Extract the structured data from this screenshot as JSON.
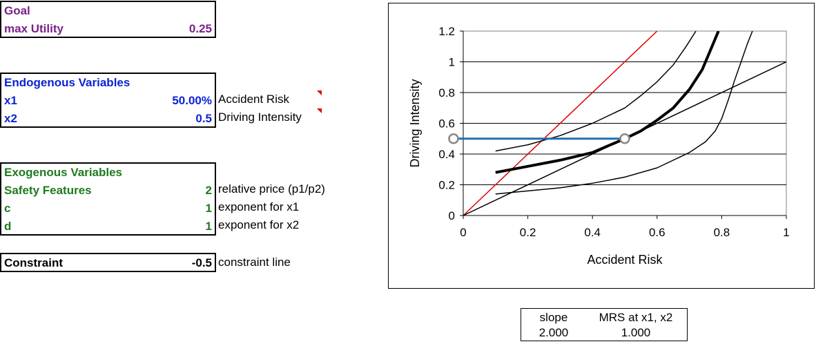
{
  "goal": {
    "header": "Goal",
    "label": "max Utility",
    "value": "0.25"
  },
  "endogenous": {
    "header": "Endogenous Variables",
    "rows": [
      {
        "label": "x1",
        "value": "50.00%",
        "note": "Accident Risk"
      },
      {
        "label": "x2",
        "value": "0.5",
        "note": "Driving Intensity"
      }
    ]
  },
  "exogenous": {
    "header": "Exogenous Variables",
    "rows": [
      {
        "label": "Safety Features",
        "value": "2",
        "note": "relative price (p1/p2)"
      },
      {
        "label": "c",
        "value": "1",
        "note": "exponent for x1"
      },
      {
        "label": "d",
        "value": "1",
        "note": "exponent for x2"
      }
    ]
  },
  "constraint": {
    "label": "Constraint",
    "value": "-0.5",
    "note": "constraint line"
  },
  "mrs_table": {
    "h1": "slope",
    "h2": "MRS at x1, x2",
    "v1": "2.000",
    "v2": "1.000"
  },
  "colors": {
    "goal": "#7a1f8a",
    "endogenous": "#0d22d6",
    "exogenous": "#1f7a1f",
    "constraint_line": "#e00000",
    "highlight": "#1f6fb0"
  },
  "chart_data": {
    "type": "line",
    "xlabel": "Accident Risk",
    "ylabel": "Driving Intensity",
    "xlim": [
      0,
      1
    ],
    "ylim": [
      0,
      1.2
    ],
    "xticks": [
      "0",
      "0.2",
      "0.4",
      "0.6",
      "0.8",
      "1"
    ],
    "yticks": [
      "0",
      "0.2",
      "0.4",
      "0.6",
      "0.8",
      "1",
      "1.2"
    ],
    "grid": "horizontal",
    "series": [
      {
        "color": "#e00000",
        "width": 1.5,
        "points": [
          [
            0,
            0
          ],
          [
            0.6,
            1.2
          ]
        ]
      },
      {
        "color": "#000000",
        "width": 1.5,
        "points": [
          [
            0,
            0
          ],
          [
            1,
            1
          ]
        ]
      },
      {
        "color": "#000000",
        "width": 1.5,
        "points": [
          [
            0.1,
            0.14
          ],
          [
            0.2,
            0.16
          ],
          [
            0.3,
            0.18
          ],
          [
            0.4,
            0.21
          ],
          [
            0.5,
            0.25
          ],
          [
            0.6,
            0.31
          ],
          [
            0.7,
            0.41
          ],
          [
            0.75,
            0.48
          ],
          [
            0.78,
            0.55
          ],
          [
            0.8,
            0.63
          ],
          [
            0.82,
            0.75
          ],
          [
            0.84,
            0.88
          ],
          [
            0.86,
            1.0
          ],
          [
            0.88,
            1.12
          ],
          [
            0.895,
            1.2
          ]
        ]
      },
      {
        "color": "#000000",
        "width": 4,
        "points": [
          [
            0.1,
            0.28
          ],
          [
            0.2,
            0.32
          ],
          [
            0.3,
            0.36
          ],
          [
            0.4,
            0.41
          ],
          [
            0.5,
            0.5
          ],
          [
            0.55,
            0.55
          ],
          [
            0.6,
            0.62
          ],
          [
            0.65,
            0.7
          ],
          [
            0.7,
            0.82
          ],
          [
            0.74,
            0.95
          ],
          [
            0.77,
            1.1
          ],
          [
            0.79,
            1.2
          ]
        ]
      },
      {
        "color": "#000000",
        "width": 1.5,
        "points": [
          [
            0.1,
            0.42
          ],
          [
            0.2,
            0.46
          ],
          [
            0.3,
            0.52
          ],
          [
            0.4,
            0.6
          ],
          [
            0.5,
            0.7
          ],
          [
            0.55,
            0.78
          ],
          [
            0.6,
            0.87
          ],
          [
            0.65,
            0.98
          ],
          [
            0.69,
            1.1
          ],
          [
            0.72,
            1.2
          ]
        ]
      },
      {
        "color": "#1f6fb0",
        "width": 3,
        "points": [
          [
            -0.03,
            0.5
          ],
          [
            0.5,
            0.5
          ]
        ]
      }
    ],
    "markers": [
      {
        "x": -0.03,
        "y": 0.5,
        "color": "#888888"
      },
      {
        "x": 0.5,
        "y": 0.5,
        "color": "#888888"
      }
    ]
  }
}
